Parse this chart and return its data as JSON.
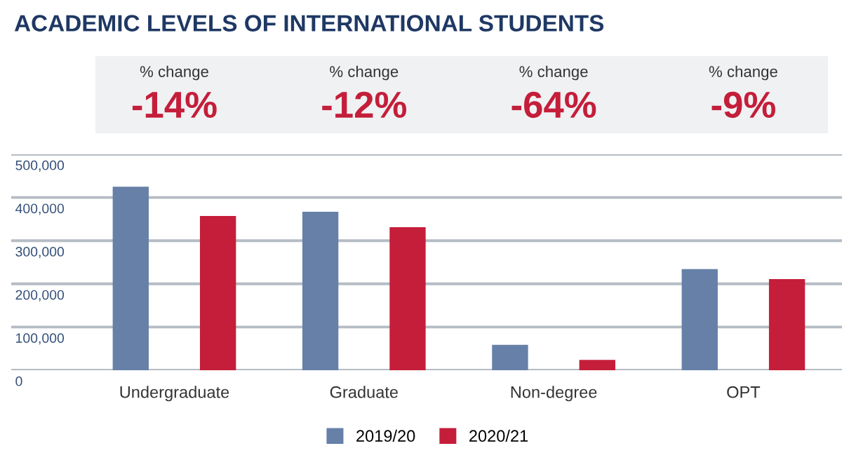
{
  "chart_data": {
    "type": "bar",
    "title": "ACADEMIC LEVELS OF INTERNATIONAL STUDENTS",
    "categories": [
      "Undergraduate",
      "Graduate",
      "Non-degree",
      "OPT"
    ],
    "series": [
      {
        "name": "2019/20",
        "color": "#6680a8",
        "values": [
          425000,
          367000,
          59000,
          234000
        ]
      },
      {
        "name": "2020/21",
        "color": "#c41e3a",
        "values": [
          357000,
          331000,
          24000,
          211000
        ]
      }
    ],
    "ylim": [
      0,
      500000
    ],
    "yticks": [
      0,
      {
        "value": 100000,
        "label": "100,000"
      },
      {
        "value": 200000,
        "label": "200,000"
      },
      {
        "value": 300000,
        "label": "300,000"
      },
      {
        "value": 400000,
        "label": "400,000"
      },
      {
        "value": 500000,
        "label": "500,000"
      }
    ],
    "grid": "y",
    "legend": "bottom",
    "annotations": [
      "% change",
      "-14%",
      "% change",
      "-12%",
      "% change",
      "-64%",
      "% change",
      "-9%"
    ]
  }
}
